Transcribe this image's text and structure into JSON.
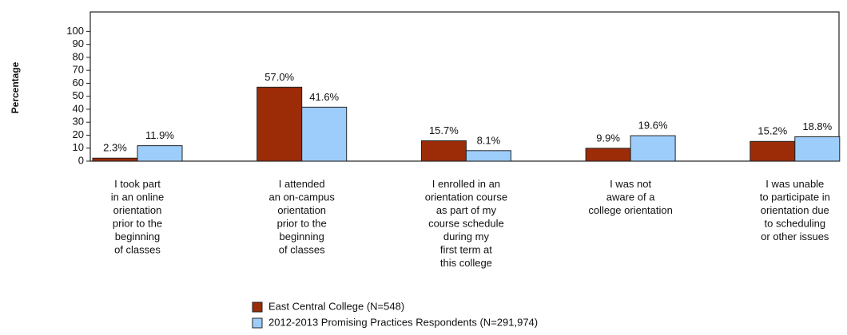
{
  "chart_data": {
    "type": "bar",
    "y_label": "Percentage",
    "categories": [
      "I took part\nin an online\norientation\nprior to the\nbeginning\nof classes",
      "I attended\nan on-campus\norientation\nprior to the\nbeginning\nof classes",
      "I enrolled in an\norientation course\nas part of my\ncourse schedule\nduring my\nfirst term at\nthis college",
      "I was not\naware of a\ncollege orientation",
      "I was unable\nto participate in\norientation due\nto scheduling\nor other issues"
    ],
    "series": [
      {
        "name": "East Central College (N=548)",
        "color": "#9c2b08",
        "values": [
          2.3,
          57.0,
          15.7,
          9.9,
          15.2
        ],
        "value_labels": [
          "2.3%",
          "57.0%",
          "15.7%",
          "9.9%",
          "15.2%"
        ]
      },
      {
        "name": "2012-2013 Promising Practices Respondents (N=291,974)",
        "color": "#9dcdfb",
        "values": [
          11.9,
          41.6,
          8.1,
          19.6,
          18.8
        ],
        "value_labels": [
          "11.9%",
          "41.6%",
          "8.1%",
          "19.6%",
          "18.8%"
        ]
      }
    ],
    "ylim": [
      0,
      115
    ],
    "yticks": [
      0,
      10,
      20,
      30,
      40,
      50,
      60,
      70,
      80,
      90,
      100
    ],
    "grid": false
  }
}
